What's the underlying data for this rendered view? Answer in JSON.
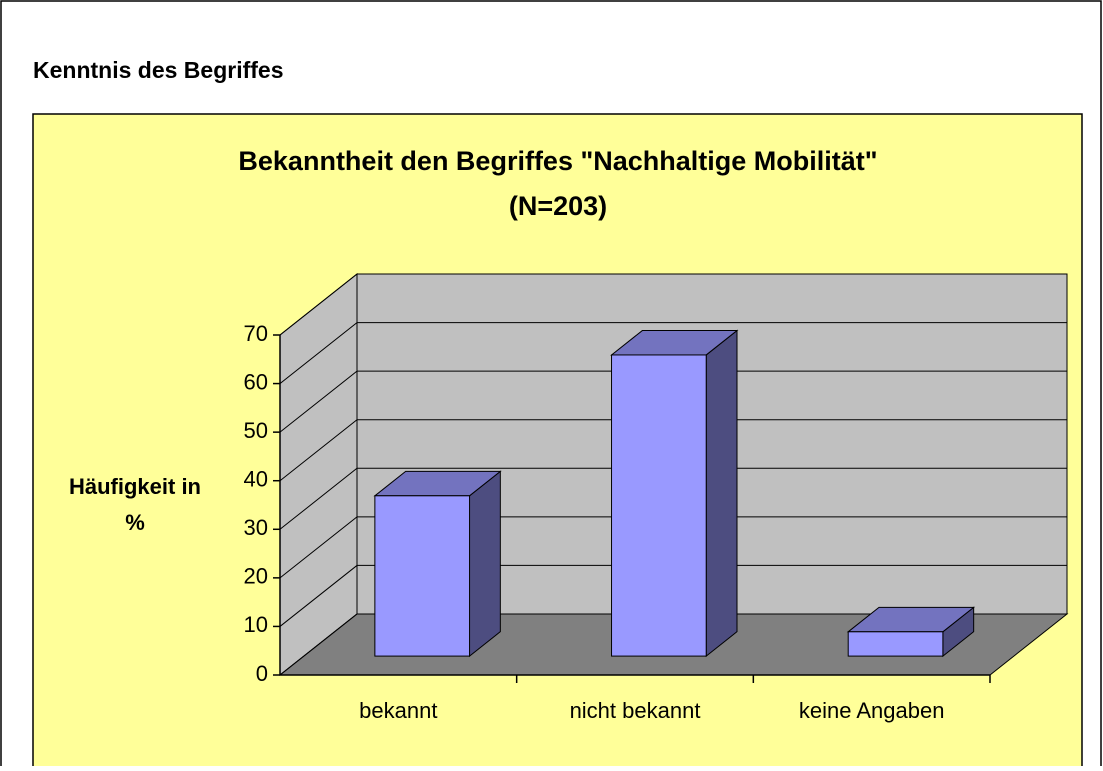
{
  "heading": "Kenntnis des Begriffes",
  "chart_data": {
    "type": "bar3d",
    "title": [
      "Bekanntheit den Begriffes \"Nachhaltige Mobilität\"",
      "(N=203)"
    ],
    "ylabel": [
      "Häufigkeit in",
      "%"
    ],
    "categories": [
      "bekannt",
      "nicht bekannt",
      "keine Angaben"
    ],
    "values": [
      33,
      62,
      5
    ],
    "color": "#9999ff",
    "ylim": [
      0,
      70
    ],
    "yticks": [
      0,
      10,
      20,
      30,
      40,
      50,
      60,
      70
    ],
    "grid": true
  }
}
